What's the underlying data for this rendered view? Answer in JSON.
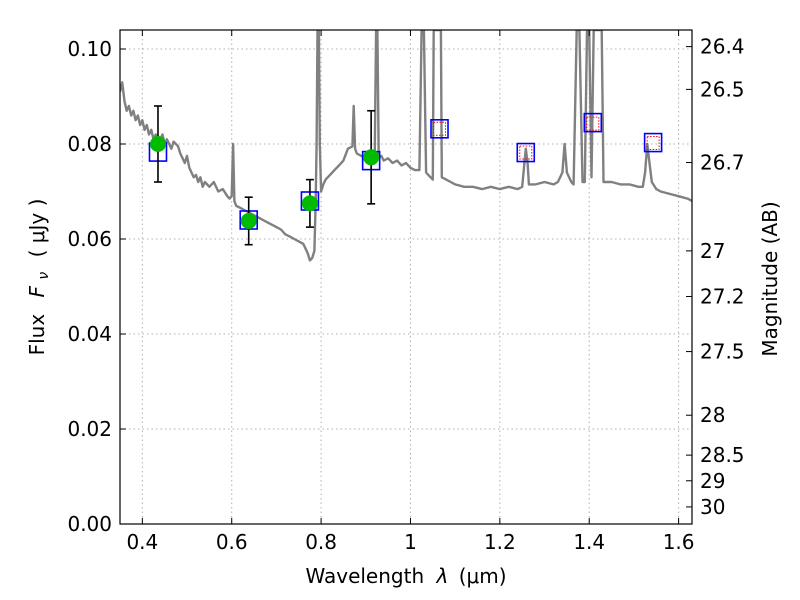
{
  "chart_data": {
    "type": "line",
    "xlabel_prefix": "Wavelength",
    "xlabel_symbol": "λ",
    "xlabel_unit": "(μm)",
    "ylabel_prefix": "Flux",
    "ylabel_symbol": "F",
    "ylabel_subscript": "ν",
    "ylabel_unit": "( μJy )",
    "y2label": "Magnitude (AB)",
    "xlim": [
      0.35,
      1.63
    ],
    "ylim": [
      0.0,
      0.104
    ],
    "x_ticks": [
      {
        "value": 0.4,
        "label": "0.4"
      },
      {
        "value": 0.6,
        "label": "0.6"
      },
      {
        "value": 0.8,
        "label": "0.8"
      },
      {
        "value": 1.0,
        "label": "1"
      },
      {
        "value": 1.2,
        "label": "1.2"
      },
      {
        "value": 1.4,
        "label": "1.4"
      },
      {
        "value": 1.6,
        "label": "1.6"
      }
    ],
    "y_ticks": [
      {
        "value": 0.0,
        "label": "0.00"
      },
      {
        "value": 0.02,
        "label": "0.02"
      },
      {
        "value": 0.04,
        "label": "0.04"
      },
      {
        "value": 0.06,
        "label": "0.06"
      },
      {
        "value": 0.08,
        "label": "0.08"
      },
      {
        "value": 0.1,
        "label": "0.10"
      }
    ],
    "y2_ticks": [
      {
        "label": "26.4",
        "flux": 0.1005
      },
      {
        "label": "26.5",
        "flux": 0.0915
      },
      {
        "label": "26.7",
        "flux": 0.0761
      },
      {
        "label": "27",
        "flux": 0.0575
      },
      {
        "label": "27.2",
        "flux": 0.0479
      },
      {
        "label": "27.5",
        "flux": 0.0363
      },
      {
        "label": "28",
        "flux": 0.0229
      },
      {
        "label": "28.5",
        "flux": 0.0145
      },
      {
        "label": "29",
        "flux": 0.0091
      },
      {
        "label": "30",
        "flux": 0.0036
      }
    ],
    "grid": true,
    "colors": {
      "model": "#808080",
      "observed": "#00bb00",
      "model_box": "#0000ff",
      "upper_limit_box": "#ff0000",
      "errorbar": "#000000"
    },
    "series": [
      {
        "type": "line",
        "points": [
          [
            0.35,
            0.091
          ],
          [
            0.355,
            0.093
          ],
          [
            0.36,
            0.089
          ],
          [
            0.365,
            0.087
          ],
          [
            0.37,
            0.088
          ],
          [
            0.375,
            0.086
          ],
          [
            0.38,
            0.087
          ],
          [
            0.385,
            0.085
          ],
          [
            0.39,
            0.086
          ],
          [
            0.395,
            0.084
          ],
          [
            0.4,
            0.085
          ],
          [
            0.405,
            0.083
          ],
          [
            0.41,
            0.084
          ],
          [
            0.415,
            0.082
          ],
          [
            0.42,
            0.083
          ],
          [
            0.425,
            0.081
          ],
          [
            0.43,
            0.082
          ],
          [
            0.435,
            0.08
          ],
          [
            0.44,
            0.081
          ],
          [
            0.445,
            0.082
          ],
          [
            0.45,
            0.08
          ],
          [
            0.455,
            0.081
          ],
          [
            0.46,
            0.08
          ],
          [
            0.465,
            0.079
          ],
          [
            0.47,
            0.0805
          ],
          [
            0.475,
            0.08
          ],
          [
            0.48,
            0.0795
          ],
          [
            0.485,
            0.078
          ],
          [
            0.49,
            0.077
          ],
          [
            0.495,
            0.076
          ],
          [
            0.5,
            0.0775
          ],
          [
            0.505,
            0.075
          ],
          [
            0.51,
            0.074
          ],
          [
            0.515,
            0.073
          ],
          [
            0.52,
            0.0735
          ],
          [
            0.525,
            0.072
          ],
          [
            0.53,
            0.073
          ],
          [
            0.535,
            0.071
          ],
          [
            0.54,
            0.072
          ],
          [
            0.55,
            0.071
          ],
          [
            0.56,
            0.072
          ],
          [
            0.57,
            0.07
          ],
          [
            0.58,
            0.0705
          ],
          [
            0.59,
            0.069
          ],
          [
            0.595,
            0.0685
          ],
          [
            0.6,
            0.069
          ],
          [
            0.603,
            0.08
          ],
          [
            0.606,
            0.068
          ],
          [
            0.61,
            0.067
          ],
          [
            0.62,
            0.0665
          ],
          [
            0.63,
            0.066
          ],
          [
            0.64,
            0.0655
          ],
          [
            0.65,
            0.065
          ],
          [
            0.66,
            0.0645
          ],
          [
            0.67,
            0.064
          ],
          [
            0.68,
            0.0635
          ],
          [
            0.69,
            0.063
          ],
          [
            0.7,
            0.0625
          ],
          [
            0.71,
            0.062
          ],
          [
            0.72,
            0.061
          ],
          [
            0.73,
            0.0605
          ],
          [
            0.74,
            0.06
          ],
          [
            0.75,
            0.0595
          ],
          [
            0.76,
            0.059
          ],
          [
            0.765,
            0.058
          ],
          [
            0.77,
            0.057
          ],
          [
            0.775,
            0.0555
          ],
          [
            0.78,
            0.056
          ],
          [
            0.785,
            0.0575
          ],
          [
            0.788,
            0.068
          ],
          [
            0.79,
            0.08
          ],
          [
            0.792,
            0.104
          ],
          [
            0.795,
            0.104
          ],
          [
            0.797,
            0.08
          ],
          [
            0.8,
            0.07
          ],
          [
            0.805,
            0.0715
          ],
          [
            0.81,
            0.0725
          ],
          [
            0.82,
            0.0735
          ],
          [
            0.83,
            0.0745
          ],
          [
            0.84,
            0.0755
          ],
          [
            0.85,
            0.0765
          ],
          [
            0.86,
            0.079
          ],
          [
            0.87,
            0.0795
          ],
          [
            0.873,
            0.088
          ],
          [
            0.876,
            0.079
          ],
          [
            0.88,
            0.078
          ],
          [
            0.89,
            0.0775
          ],
          [
            0.9,
            0.077
          ],
          [
            0.91,
            0.0765
          ],
          [
            0.92,
            0.077
          ],
          [
            0.923,
            0.104
          ],
          [
            0.926,
            0.104
          ],
          [
            0.929,
            0.077
          ],
          [
            0.935,
            0.0775
          ],
          [
            0.94,
            0.0765
          ],
          [
            0.95,
            0.077
          ],
          [
            0.96,
            0.076
          ],
          [
            0.97,
            0.0765
          ],
          [
            0.98,
            0.0755
          ],
          [
            0.99,
            0.076
          ],
          [
            1.0,
            0.075
          ],
          [
            1.01,
            0.0745
          ],
          [
            1.02,
            0.0745
          ],
          [
            1.025,
            0.104
          ],
          [
            1.03,
            0.104
          ],
          [
            1.035,
            0.074
          ],
          [
            1.04,
            0.0735
          ],
          [
            1.045,
            0.073
          ],
          [
            1.05,
            0.0725
          ],
          [
            1.052,
            0.104
          ],
          [
            1.06,
            0.104
          ],
          [
            1.068,
            0.104
          ],
          [
            1.07,
            0.073
          ],
          [
            1.08,
            0.0725
          ],
          [
            1.09,
            0.072
          ],
          [
            1.1,
            0.0715
          ],
          [
            1.12,
            0.071
          ],
          [
            1.14,
            0.071
          ],
          [
            1.16,
            0.0705
          ],
          [
            1.18,
            0.071
          ],
          [
            1.2,
            0.0705
          ],
          [
            1.22,
            0.071
          ],
          [
            1.24,
            0.0705
          ],
          [
            1.25,
            0.071
          ],
          [
            1.255,
            0.076
          ],
          [
            1.258,
            0.079
          ],
          [
            1.262,
            0.076
          ],
          [
            1.265,
            0.0715
          ],
          [
            1.28,
            0.0715
          ],
          [
            1.3,
            0.072
          ],
          [
            1.32,
            0.0715
          ],
          [
            1.33,
            0.072
          ],
          [
            1.34,
            0.074
          ],
          [
            1.345,
            0.08
          ],
          [
            1.35,
            0.074
          ],
          [
            1.36,
            0.072
          ],
          [
            1.365,
            0.0715
          ],
          [
            1.372,
            0.104
          ],
          [
            1.378,
            0.104
          ],
          [
            1.385,
            0.072
          ],
          [
            1.39,
            0.072
          ],
          [
            1.395,
            0.104
          ],
          [
            1.4,
            0.104
          ],
          [
            1.405,
            0.073
          ],
          [
            1.41,
            0.104
          ],
          [
            1.418,
            0.104
          ],
          [
            1.422,
            0.104
          ],
          [
            1.428,
            0.104
          ],
          [
            1.432,
            0.072
          ],
          [
            1.45,
            0.072
          ],
          [
            1.47,
            0.0715
          ],
          [
            1.49,
            0.0715
          ],
          [
            1.51,
            0.071
          ],
          [
            1.52,
            0.071
          ],
          [
            1.525,
            0.074
          ],
          [
            1.53,
            0.08
          ],
          [
            1.535,
            0.076
          ],
          [
            1.54,
            0.072
          ],
          [
            1.55,
            0.0705
          ],
          [
            1.56,
            0.07
          ],
          [
            1.58,
            0.0695
          ],
          [
            1.6,
            0.069
          ],
          [
            1.62,
            0.0685
          ],
          [
            1.63,
            0.068
          ]
        ]
      },
      {
        "type": "scatter",
        "points": [
          {
            "x": 0.435,
            "y": 0.08,
            "err": 0.008
          },
          {
            "x": 0.638,
            "y": 0.0638,
            "err": 0.005
          },
          {
            "x": 0.775,
            "y": 0.0675,
            "err": 0.005
          },
          {
            "x": 0.912,
            "y": 0.0772,
            "err": 0.0098
          }
        ]
      },
      {
        "type": "scatter",
        "points": [
          {
            "x": 0.435,
            "y": 0.0783
          },
          {
            "x": 0.638,
            "y": 0.064
          },
          {
            "x": 0.775,
            "y": 0.068
          },
          {
            "x": 0.912,
            "y": 0.0765
          },
          {
            "x": 1.065,
            "y": 0.0832
          },
          {
            "x": 1.258,
            "y": 0.0782
          },
          {
            "x": 1.408,
            "y": 0.0845
          },
          {
            "x": 1.543,
            "y": 0.0803
          }
        ]
      },
      {
        "type": "scatter",
        "points": [
          {
            "x": 1.065,
            "y": 0.0832
          },
          {
            "x": 1.258,
            "y": 0.0782
          },
          {
            "x": 1.408,
            "y": 0.0843
          },
          {
            "x": 1.543,
            "y": 0.0802
          }
        ]
      }
    ]
  }
}
